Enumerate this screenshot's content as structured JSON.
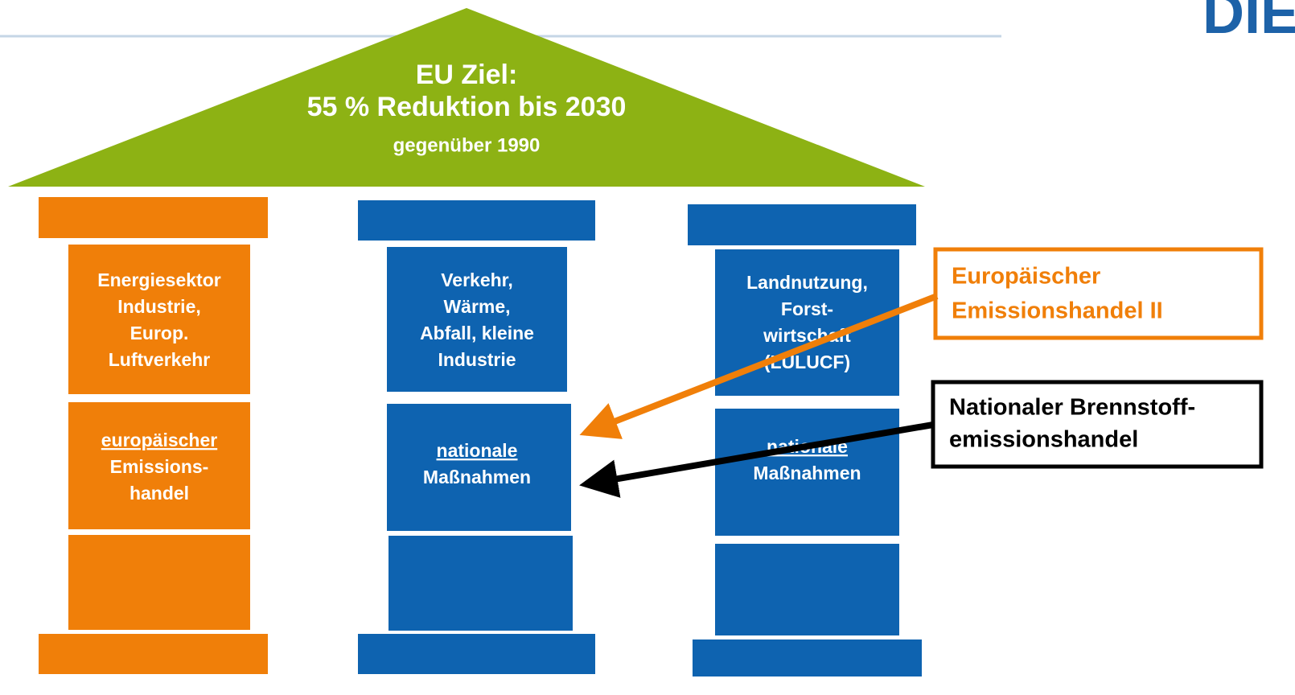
{
  "logo": "DIER",
  "roof": {
    "lines": [
      "EU Ziel:",
      "55 % Reduktion bis 2030",
      "gegenüber 1990"
    ]
  },
  "pillars": [
    {
      "top": [
        "Energiesektor",
        "Industrie,",
        "Europ.",
        "Luftverkehr"
      ],
      "middle": [
        "europäischer",
        "Emissions-",
        "handel"
      ]
    },
    {
      "top": [
        "Verkehr,",
        "Wärme,",
        "Abfall, kleine",
        "Industrie"
      ],
      "middle": [
        "nationale",
        "Maßnahmen"
      ]
    },
    {
      "top": [
        "Landnutzung,",
        "Forst-",
        "wirtschaft",
        "(LULUCF)"
      ],
      "middle": [
        "nationale",
        "Maßnahmen"
      ]
    }
  ],
  "callouts": [
    {
      "lines": [
        "Europäischer",
        "Emissionshandel II"
      ]
    },
    {
      "lines": [
        "Nationaler Brennstoff-",
        "emissionshandel"
      ]
    }
  ]
}
